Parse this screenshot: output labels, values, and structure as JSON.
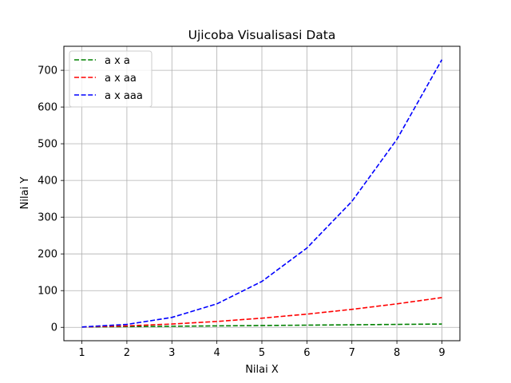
{
  "chart_data": {
    "type": "line",
    "title": "Ujicoba Visualisasi Data",
    "xlabel": "Nilai X",
    "ylabel": "Nilai Y",
    "x": [
      1,
      2,
      3,
      4,
      5,
      6,
      7,
      8,
      9
    ],
    "xlim": [
      0.6,
      9.4
    ],
    "ylim": [
      -36.4,
      765.4
    ],
    "xticks": [
      1,
      2,
      3,
      4,
      5,
      6,
      7,
      8,
      9
    ],
    "yticks": [
      0,
      100,
      200,
      300,
      400,
      500,
      600,
      700
    ],
    "grid": true,
    "legend_position": "top-left",
    "line_style": "dashed",
    "series": [
      {
        "name": "a x a",
        "color": "#008000",
        "values": [
          1,
          2,
          3,
          4,
          5,
          6,
          7,
          8,
          9
        ]
      },
      {
        "name": "a x aa",
        "color": "#ff0000",
        "values": [
          1,
          4,
          9,
          16,
          25,
          36,
          49,
          64,
          81
        ]
      },
      {
        "name": "a x aaa",
        "color": "#0000ff",
        "values": [
          1,
          8,
          27,
          64,
          125,
          216,
          343,
          512,
          729
        ]
      }
    ]
  }
}
